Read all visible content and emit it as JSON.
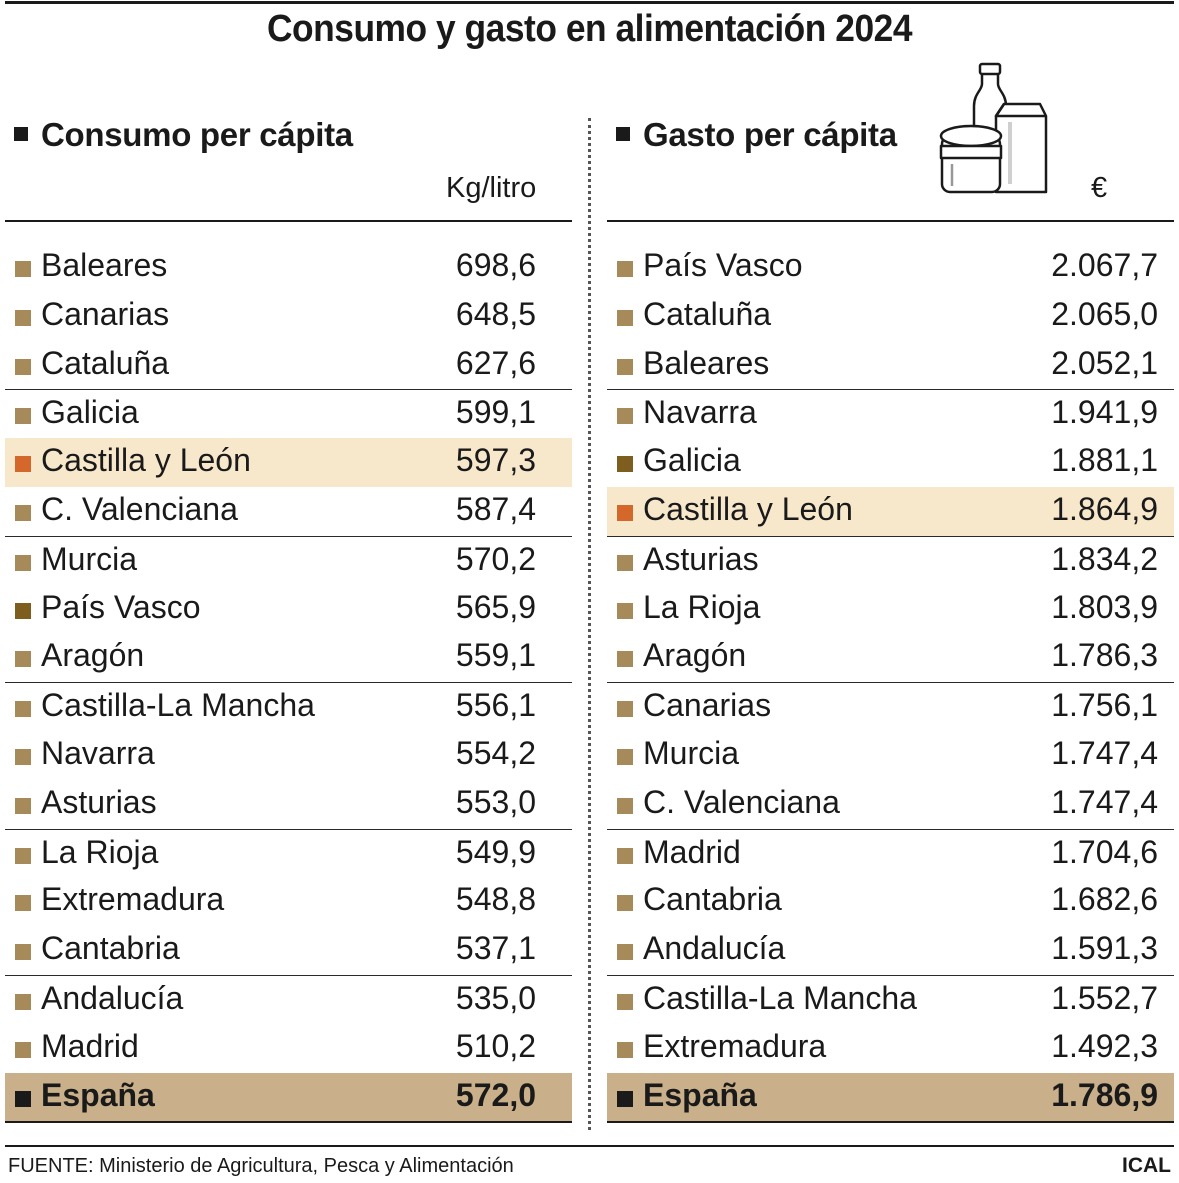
{
  "title": "Consumo y gasto en alimentación 2024",
  "source": "FUENTE: Ministerio de Agricultura, Pesca y Alimentación",
  "credit": "ICAL",
  "colors": {
    "marker": "#a68a5a",
    "highlight_marker": "#d4672a",
    "highlight_bg": "#f7e8cc",
    "total_bg": "#c9b08a",
    "dark_marker": "#7e5e1f"
  },
  "icon": "groceries-icon",
  "chart_data": [
    {
      "type": "table",
      "title": "Consumo per cápita",
      "unit": "Kg/litro",
      "rows": [
        {
          "name": "Baleares",
          "value": "698,6"
        },
        {
          "name": "Canarias",
          "value": "648,5"
        },
        {
          "name": "Cataluña",
          "value": "627,6"
        },
        {
          "name": "Galicia",
          "value": "599,1"
        },
        {
          "name": "Castilla y León",
          "value": "597,3"
        },
        {
          "name": "C. Valenciana",
          "value": "587,4"
        },
        {
          "name": "Murcia",
          "value": "570,2"
        },
        {
          "name": "País Vasco",
          "value": "565,9"
        },
        {
          "name": "Aragón",
          "value": "559,1"
        },
        {
          "name": "Castilla-La Mancha",
          "value": "556,1"
        },
        {
          "name": "Navarra",
          "value": "554,2"
        },
        {
          "name": "Asturias",
          "value": "553,0"
        },
        {
          "name": "La Rioja",
          "value": "549,9"
        },
        {
          "name": "Extremadura",
          "value": "548,8"
        },
        {
          "name": "Cantabria",
          "value": "537,1"
        },
        {
          "name": "Andalucía",
          "value": "535,0"
        },
        {
          "name": "Madrid",
          "value": "510,2"
        }
      ],
      "total": {
        "name": "España",
        "value": "572,0"
      },
      "highlight": "Castilla y León"
    },
    {
      "type": "table",
      "title": "Gasto per cápita",
      "unit": "€",
      "rows": [
        {
          "name": "País Vasco",
          "value": "2.067,7"
        },
        {
          "name": "Cataluña",
          "value": "2.065,0"
        },
        {
          "name": "Baleares",
          "value": "2.052,1"
        },
        {
          "name": "Navarra",
          "value": "1.941,9"
        },
        {
          "name": "Galicia",
          "value": "1.881,1"
        },
        {
          "name": "Castilla y León",
          "value": "1.864,9"
        },
        {
          "name": "Asturias",
          "value": "1.834,2"
        },
        {
          "name": "La Rioja",
          "value": "1.803,9"
        },
        {
          "name": "Aragón",
          "value": "1.786,3"
        },
        {
          "name": "Canarias",
          "value": "1.756,1"
        },
        {
          "name": "Murcia",
          "value": "1.747,4"
        },
        {
          "name": "C. Valenciana",
          "value": "1.747,4"
        },
        {
          "name": "Madrid",
          "value": "1.704,6"
        },
        {
          "name": "Cantabria",
          "value": "1.682,6"
        },
        {
          "name": "Andalucía",
          "value": "1.591,3"
        },
        {
          "name": "Castilla-La Mancha",
          "value": "1.552,7"
        },
        {
          "name": "Extremadura",
          "value": "1.492,3"
        }
      ],
      "total": {
        "name": "España",
        "value": "1.786,9"
      },
      "highlight": "Castilla y León"
    }
  ]
}
